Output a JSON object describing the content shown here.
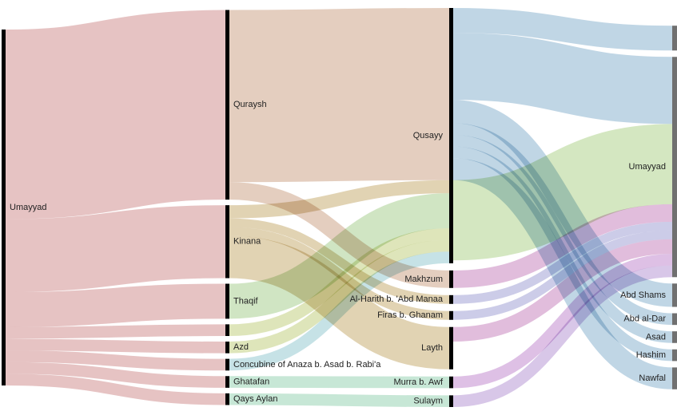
{
  "diagram": {
    "type": "sankey",
    "columns": [
      [
        {
          "id": "umayyad_src",
          "label": "Umayyad",
          "label_side": "right",
          "color": "#000000"
        }
      ],
      [
        {
          "id": "quraysh",
          "label": "Quraysh",
          "label_side": "right",
          "color": "#000000"
        },
        {
          "id": "kinana",
          "label": "Kinana",
          "label_side": "right",
          "color": "#000000"
        },
        {
          "id": "thaqif",
          "label": "Thaqif",
          "label_side": "right",
          "color": "#000000"
        },
        {
          "id": "blank1",
          "label": "",
          "label_side": "right",
          "color": "#000000"
        },
        {
          "id": "azd",
          "label": "Azd",
          "label_side": "right",
          "color": "#000000"
        },
        {
          "id": "concubine",
          "label": "Concubine of Anaza b. Asad b. Rabi'a",
          "label_side": "right",
          "color": "#000000"
        },
        {
          "id": "ghatafan",
          "label": "Ghatafan",
          "label_side": "right",
          "color": "#000000"
        },
        {
          "id": "qays",
          "label": "Qays Aylan",
          "label_side": "right",
          "color": "#000000"
        }
      ],
      [
        {
          "id": "qusayy",
          "label": "Qusayy",
          "label_side": "left",
          "color": "#000000"
        },
        {
          "id": "makhzum",
          "label": "Makhzum",
          "label_side": "left",
          "color": "#000000"
        },
        {
          "id": "alharith",
          "label": "Al-Harith b. 'Abd Manaa",
          "label_side": "left",
          "color": "#000000"
        },
        {
          "id": "firas",
          "label": "Firas b. Ghanam",
          "label_side": "left",
          "color": "#000000"
        },
        {
          "id": "layth",
          "label": "Layth",
          "label_side": "left",
          "color": "#000000"
        },
        {
          "id": "murra",
          "label": "Murra b. Awf",
          "label_side": "left",
          "color": "#000000"
        },
        {
          "id": "sulaym",
          "label": "Sulaym",
          "label_side": "left",
          "color": "#000000"
        }
      ],
      [
        {
          "id": "tgt_top",
          "label": "",
          "label_side": "left",
          "color": "#707070"
        },
        {
          "id": "umayyad_tgt",
          "label": "Umayyad",
          "label_side": "left",
          "color": "#707070"
        },
        {
          "id": "abdshams",
          "label": "Abd Shams",
          "label_side": "left",
          "color": "#707070"
        },
        {
          "id": "abdaldar",
          "label": "Abd al-Dar",
          "label_side": "left",
          "color": "#707070"
        },
        {
          "id": "asad",
          "label": "Asad",
          "label_side": "left",
          "color": "#707070"
        },
        {
          "id": "hashim",
          "label": "Hashim",
          "label_side": "left",
          "color": "#707070"
        },
        {
          "id": "nawfal",
          "label": "Nawfal",
          "label_side": "left",
          "color": "#707070"
        }
      ]
    ],
    "links": [
      {
        "source": "umayyad_src",
        "target": "quraysh",
        "value": 13,
        "color": "#e2b8b9"
      },
      {
        "source": "umayyad_src",
        "target": "kinana",
        "value": 5,
        "color": "#e2b8b9"
      },
      {
        "source": "umayyad_src",
        "target": "thaqif",
        "value": 2.4,
        "color": "#e2b8b9"
      },
      {
        "source": "umayyad_src",
        "target": "blank1",
        "value": 0.8,
        "color": "#e2b8b9"
      },
      {
        "source": "umayyad_src",
        "target": "azd",
        "value": 0.8,
        "color": "#e2b8b9"
      },
      {
        "source": "umayyad_src",
        "target": "concubine",
        "value": 0.8,
        "color": "#e2b8b9"
      },
      {
        "source": "umayyad_src",
        "target": "ghatafan",
        "value": 0.8,
        "color": "#e2b8b9"
      },
      {
        "source": "umayyad_src",
        "target": "qays",
        "value": 0.8,
        "color": "#e2b8b9"
      },
      {
        "source": "quraysh",
        "target": "qusayy",
        "value": 11.8,
        "color": "#dfc6b4"
      },
      {
        "source": "quraysh",
        "target": "makhzum",
        "value": 1.2,
        "color": "#dfc6b4"
      },
      {
        "source": "kinana",
        "target": "qusayy",
        "value": 0.9,
        "color": "#dccba6"
      },
      {
        "source": "kinana",
        "target": "alharith",
        "value": 0.6,
        "color": "#dccba6"
      },
      {
        "source": "kinana",
        "target": "firas",
        "value": 0.6,
        "color": "#dccba6"
      },
      {
        "source": "kinana",
        "target": "layth",
        "value": 2.9,
        "color": "#dccba6"
      },
      {
        "source": "thaqif",
        "target": "qusayy",
        "value": 2.4,
        "color": "#c8e0b8"
      },
      {
        "source": "blank1",
        "target": "qusayy",
        "value": 0.8,
        "color": "#d8e0ae"
      },
      {
        "source": "azd",
        "target": "qusayy",
        "value": 0.8,
        "color": "#d8e0ae"
      },
      {
        "source": "concubine",
        "target": "qusayy",
        "value": 0.8,
        "color": "#bcdde2"
      },
      {
        "source": "ghatafan",
        "target": "murra",
        "value": 0.8,
        "color": "#bde3cf"
      },
      {
        "source": "qays",
        "target": "sulaym",
        "value": 0.8,
        "color": "#bde3cf"
      },
      {
        "source": "qusayy",
        "target": "tgt_top",
        "value": 1.7,
        "color": "#b5cfe0"
      },
      {
        "source": "qusayy",
        "target": "umayyad_tgt",
        "value": 4.6,
        "color": "#b5cfe0"
      },
      {
        "source": "qusayy",
        "target": "abdshams",
        "value": 1.6,
        "color": "#b5cfe0"
      },
      {
        "source": "qusayy",
        "target": "abdaldar",
        "value": 0.8,
        "color": "#b5cfe0"
      },
      {
        "source": "qusayy",
        "target": "asad",
        "value": 0.8,
        "color": "#b5cfe0"
      },
      {
        "source": "qusayy",
        "target": "hashim",
        "value": 0.8,
        "color": "#b5cfe0"
      },
      {
        "source": "qusayy",
        "target": "nawfal",
        "value": 1.5,
        "color": "#b5cfe0"
      },
      {
        "source": "qusayy",
        "target": "umayyad_tgt",
        "value": 5.5,
        "color": "#cde3b6"
      },
      {
        "source": "makhzum",
        "target": "umayyad_tgt",
        "value": 1.2,
        "color": "#dcb1d6"
      },
      {
        "source": "alharith",
        "target": "umayyad_tgt",
        "value": 0.6,
        "color": "#c3c3e4"
      },
      {
        "source": "firas",
        "target": "umayyad_tgt",
        "value": 0.6,
        "color": "#c3c3e4"
      },
      {
        "source": "layth",
        "target": "umayyad_tgt",
        "value": 1.0,
        "color": "#dcb1d6"
      },
      {
        "source": "murra",
        "target": "umayyad_tgt",
        "value": 0.8,
        "color": "#d8b5e0"
      },
      {
        "source": "sulaym",
        "target": "umayyad_tgt",
        "value": 0.8,
        "color": "#d1bde4"
      }
    ]
  }
}
